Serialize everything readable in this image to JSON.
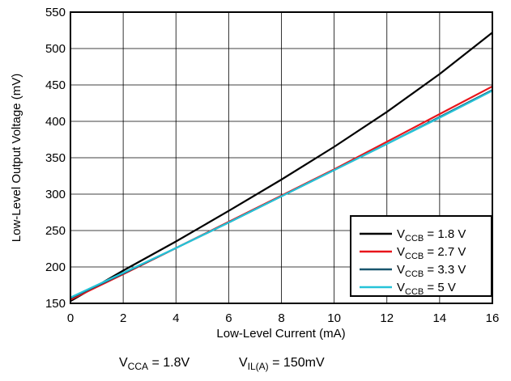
{
  "chart_data": {
    "type": "line",
    "xlabel": "Low-Level Current (mA)",
    "ylabel": "Low-Level Output Voltage (mV)",
    "xlim": [
      0,
      16
    ],
    "ylim": [
      150,
      550
    ],
    "x_ticks": [
      "0",
      "2",
      "4",
      "6",
      "8",
      "10",
      "12",
      "14",
      "16"
    ],
    "y_ticks": [
      "150",
      "200",
      "250",
      "300",
      "350",
      "400",
      "450",
      "500",
      "550"
    ],
    "grid": true,
    "legend_position": "bottom-right",
    "series": [
      {
        "name_main": "V",
        "name_sub": "CCB",
        "name_tail": " = 1.8 V",
        "color": "#000000",
        "x": [
          0,
          2,
          4,
          6,
          8,
          10,
          12,
          14,
          16
        ],
        "y": [
          153,
          195,
          235,
          277,
          320,
          365,
          413,
          465,
          522
        ]
      },
      {
        "name_main": "V",
        "name_sub": "CCB",
        "name_tail": " = 2.7 V",
        "color": "#e8151b",
        "x": [
          0,
          2,
          4,
          6,
          8,
          10,
          12,
          14,
          16
        ],
        "y": [
          155,
          190,
          226,
          262,
          298,
          334,
          372,
          410,
          448
        ]
      },
      {
        "name_main": "V",
        "name_sub": "CCB",
        "name_tail": " = 3.3 V",
        "color": "#19566e",
        "x": [
          0,
          2,
          4,
          6,
          8,
          10,
          12,
          14,
          16
        ],
        "y": [
          157,
          191,
          226,
          261,
          297,
          333,
          369,
          406,
          443
        ]
      },
      {
        "name_main": "V",
        "name_sub": "CCB",
        "name_tail": " = 5 V",
        "color": "#26c3d8",
        "x": [
          0,
          2,
          4,
          6,
          8,
          10,
          12,
          14,
          16
        ],
        "y": [
          158,
          192,
          226,
          261,
          297,
          333,
          369,
          405,
          442
        ]
      }
    ],
    "conditions": [
      {
        "main": "V",
        "sub": "CCA",
        "tail": " = 1.8V"
      },
      {
        "main": "V",
        "sub": "IL(A)",
        "tail": " = 150mV"
      }
    ]
  }
}
